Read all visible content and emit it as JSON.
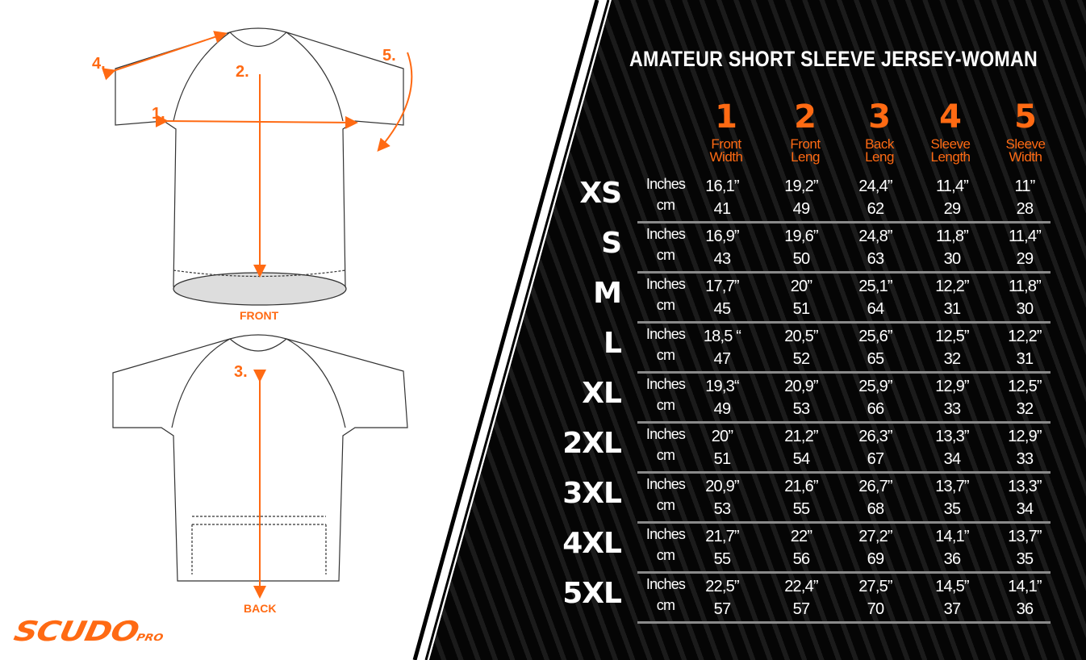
{
  "title": "AMATEUR SHORT SLEEVE JERSEY-WOMAN",
  "columns": [
    {
      "num": "1",
      "label1": "Front",
      "label2": "Width"
    },
    {
      "num": "2",
      "label1": "Front",
      "label2": "Leng"
    },
    {
      "num": "3",
      "label1": "Back",
      "label2": "Leng"
    },
    {
      "num": "4",
      "label1": "Sleeve",
      "label2": "Length"
    },
    {
      "num": "5",
      "label1": "Sleeve",
      "label2": "Width"
    }
  ],
  "unit_labels": {
    "inches": "Inches",
    "cm": "cm"
  },
  "rows": [
    {
      "size": "XS",
      "inches": [
        "16,1”",
        "19,2”",
        "24,4”",
        "11,4”",
        "11”"
      ],
      "cm": [
        "41",
        "49",
        "62",
        "29",
        "28"
      ]
    },
    {
      "size": "S",
      "inches": [
        "16,9”",
        "19,6”",
        "24,8”",
        "11,8”",
        "11,4”"
      ],
      "cm": [
        "43",
        "50",
        "63",
        "30",
        "29"
      ]
    },
    {
      "size": "M",
      "inches": [
        "17,7”",
        "20”",
        "25,1”",
        "12,2”",
        "11,8”"
      ],
      "cm": [
        "45",
        "51",
        "64",
        "31",
        "30"
      ]
    },
    {
      "size": "L",
      "inches": [
        "18,5 “",
        "20,5”",
        "25,6”",
        "12,5”",
        "12,2”"
      ],
      "cm": [
        "47",
        "52",
        "65",
        "32",
        "31"
      ]
    },
    {
      "size": "XL",
      "inches": [
        "19,3“",
        "20,9”",
        "25,9”",
        "12,9”",
        "12,5”"
      ],
      "cm": [
        "49",
        "53",
        "66",
        "33",
        "32"
      ]
    },
    {
      "size": "2XL",
      "inches": [
        "20”",
        "21,2”",
        "26,3”",
        "13,3”",
        "12,9”"
      ],
      "cm": [
        "51",
        "54",
        "67",
        "34",
        "33"
      ]
    },
    {
      "size": "3XL",
      "inches": [
        "20,9”",
        "21,6”",
        "26,7”",
        "13,7”",
        "13,3”"
      ],
      "cm": [
        "53",
        "55",
        "68",
        "35",
        "34"
      ]
    },
    {
      "size": "4XL",
      "inches": [
        "21,7”",
        "22”",
        "27,2”",
        "14,1”",
        "13,7”"
      ],
      "cm": [
        "55",
        "56",
        "69",
        "36",
        "35"
      ]
    },
    {
      "size": "5XL",
      "inches": [
        "22,5”",
        "22,4”",
        "27,5”",
        "14,5”",
        "14,1”"
      ],
      "cm": [
        "57",
        "57",
        "70",
        "37",
        "36"
      ]
    }
  ],
  "diagram": {
    "front_label": "FRONT",
    "back_label": "BACK",
    "markers": {
      "m1": "1.",
      "m2": "2.",
      "m3": "3.",
      "m4": "4.",
      "m5": "5."
    }
  },
  "logo": {
    "main": "SCUDO",
    "sub": "PRO"
  },
  "colors": {
    "accent": "#ff6a13",
    "panel": "#050505",
    "stripe": "#1b1b1b",
    "separator": "#8a8a8a"
  }
}
